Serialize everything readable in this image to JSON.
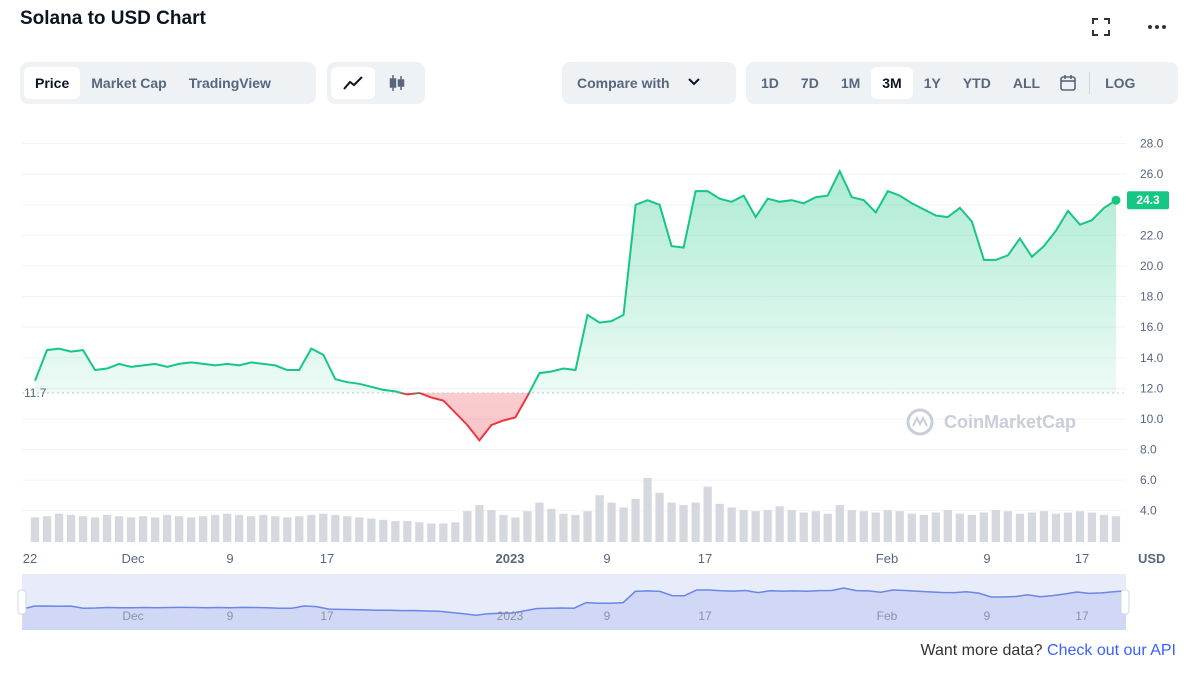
{
  "header": {
    "title": "Solana to USD Chart",
    "fullscreen_icon": "fullscreen-icon",
    "more_icon": "more-dots-icon"
  },
  "tabs": [
    {
      "label": "Price",
      "active": true
    },
    {
      "label": "Market Cap",
      "active": false
    },
    {
      "label": "TradingView",
      "active": false
    }
  ],
  "chart_types": [
    {
      "icon": "line-chart-icon",
      "active": true
    },
    {
      "icon": "candlestick-icon",
      "active": false
    }
  ],
  "compare": {
    "label": "Compare with",
    "icon": "chevron-down-icon"
  },
  "ranges": [
    {
      "label": "1D",
      "active": false
    },
    {
      "label": "7D",
      "active": false
    },
    {
      "label": "1M",
      "active": false
    },
    {
      "label": "3M",
      "active": true
    },
    {
      "label": "1Y",
      "active": false
    },
    {
      "label": "YTD",
      "active": false
    },
    {
      "label": "ALL",
      "active": false
    }
  ],
  "calendar_icon": "calendar-icon",
  "log_label": "LOG",
  "footer": {
    "text": "Want more data?",
    "link": "Check out our API"
  },
  "colors": {
    "up": "#16c784",
    "down": "#ea3943",
    "navigator": "#6a86e6"
  },
  "chart_data": {
    "type": "line",
    "title": "",
    "watermark": "CoinMarketCap",
    "y_unit": "USD",
    "ylim": [
      3,
      28.5
    ],
    "y_ticks": [
      "28.0",
      "26.0",
      "24.0",
      "22.0",
      "20.0",
      "18.0",
      "16.0",
      "14.0",
      "12.0",
      "10.0",
      "8.0",
      "6.0",
      "4.0"
    ],
    "x_ticks": [
      "22",
      "Dec",
      "9",
      "17",
      "2023",
      "9",
      "17",
      "Feb",
      "9",
      "17"
    ],
    "baseline": {
      "value": 11.7,
      "label": "11.7"
    },
    "current": {
      "value": 24.3,
      "label": "24.3"
    },
    "x": [
      0,
      1,
      2,
      3,
      4,
      5,
      6,
      7,
      8,
      9,
      10,
      11,
      12,
      13,
      14,
      15,
      16,
      17,
      18,
      19,
      20,
      21,
      22,
      23,
      24,
      25,
      26,
      27,
      28,
      29,
      30,
      31,
      32,
      33,
      34,
      35,
      36,
      37,
      38,
      39,
      40,
      41,
      42,
      43,
      44,
      45,
      46,
      47,
      48,
      49,
      50,
      51,
      52,
      53,
      54,
      55,
      56,
      57,
      58,
      59,
      60,
      61,
      62,
      63,
      64,
      65,
      66,
      67,
      68,
      69,
      70,
      71,
      72,
      73,
      74,
      75,
      76,
      77,
      78,
      79,
      80,
      81,
      82,
      83,
      84,
      85,
      86,
      87,
      88,
      89,
      90
    ],
    "values": [
      12.5,
      14.5,
      14.6,
      14.4,
      14.5,
      13.2,
      13.3,
      13.6,
      13.4,
      13.5,
      13.6,
      13.4,
      13.6,
      13.7,
      13.6,
      13.5,
      13.6,
      13.5,
      13.7,
      13.6,
      13.5,
      13.2,
      13.2,
      14.6,
      14.2,
      12.6,
      12.4,
      12.3,
      12.1,
      11.9,
      11.8,
      11.6,
      11.7,
      11.4,
      11.2,
      10.4,
      9.6,
      8.6,
      9.6,
      9.9,
      10.1,
      11.5,
      13.0,
      13.1,
      13.3,
      13.2,
      16.8,
      16.3,
      16.4,
      16.8,
      24.0,
      24.3,
      24.0,
      21.3,
      21.2,
      24.9,
      24.9,
      24.4,
      24.2,
      24.6,
      23.2,
      24.4,
      24.2,
      24.3,
      24.1,
      24.5,
      24.6,
      26.2,
      24.5,
      24.3,
      23.5,
      24.9,
      24.6,
      24.1,
      23.7,
      23.3,
      23.2,
      23.8,
      22.9,
      20.4,
      20.4,
      20.7,
      21.8,
      20.6,
      21.3,
      22.3,
      23.6,
      22.7,
      23.0,
      23.8,
      24.3
    ],
    "volume": [
      2.0,
      2.1,
      2.3,
      2.2,
      2.1,
      2.0,
      2.2,
      2.1,
      2.0,
      2.1,
      2.0,
      2.2,
      2.1,
      2.0,
      2.1,
      2.2,
      2.3,
      2.2,
      2.1,
      2.2,
      2.1,
      2.0,
      2.1,
      2.2,
      2.3,
      2.2,
      2.1,
      2.0,
      1.9,
      1.8,
      1.7,
      1.7,
      1.6,
      1.5,
      1.5,
      1.6,
      2.5,
      3.0,
      2.6,
      2.2,
      2.0,
      2.5,
      3.2,
      2.7,
      2.3,
      2.2,
      2.5,
      3.8,
      3.2,
      2.8,
      3.5,
      5.2,
      4.0,
      3.2,
      3.0,
      3.2,
      4.5,
      3.1,
      2.8,
      2.6,
      2.5,
      2.6,
      2.9,
      2.6,
      2.4,
      2.5,
      2.3,
      3.0,
      2.6,
      2.5,
      2.4,
      2.6,
      2.5,
      2.3,
      2.2,
      2.4,
      2.6,
      2.3,
      2.2,
      2.4,
      2.6,
      2.5,
      2.3,
      2.4,
      2.5,
      2.3,
      2.4,
      2.5,
      2.4,
      2.2,
      2.1
    ]
  }
}
